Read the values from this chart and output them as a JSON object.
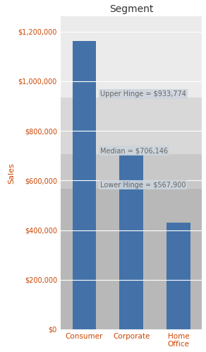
{
  "title": "Segment",
  "ylabel": "Sales",
  "categories": [
    "Consumer",
    "Corporate",
    "Home\nOffice"
  ],
  "bar_values": [
    1161000,
    706000,
    431000
  ],
  "bar_color": "#4472a8",
  "upper_hinge": 933774,
  "median": 706146,
  "lower_hinge": 567900,
  "ymax": 1260000,
  "ymin": 0,
  "yticks": [
    0,
    200000,
    400000,
    600000,
    800000,
    1000000,
    1200000
  ],
  "ytick_labels": [
    "$0",
    "$200,000",
    "$400,000",
    "$600,000",
    "$800,000",
    "$1,000,000",
    "$1,200,000"
  ],
  "annotation_upper": "Upper Hinge = $933,774",
  "annotation_median": "Median = $706,146",
  "annotation_lower": "Lower Hinge = $567,900",
  "bg_color_1": "#ebebeb",
  "bg_color_2": "#d8d8d8",
  "bg_color_3": "#c8c8c8",
  "bg_color_4": "#b8b8b8",
  "fig_bg": "#ffffff",
  "annotation_bg": "#ccd4dc",
  "annotation_text_color": "#666666",
  "title_color": "#333333",
  "ylabel_color": "#cc4400",
  "tick_color": "#cc4400",
  "bar_width": 0.5,
  "annotation_fontsize": 7,
  "tick_fontsize": 7,
  "title_fontsize": 10,
  "ylabel_fontsize": 8
}
